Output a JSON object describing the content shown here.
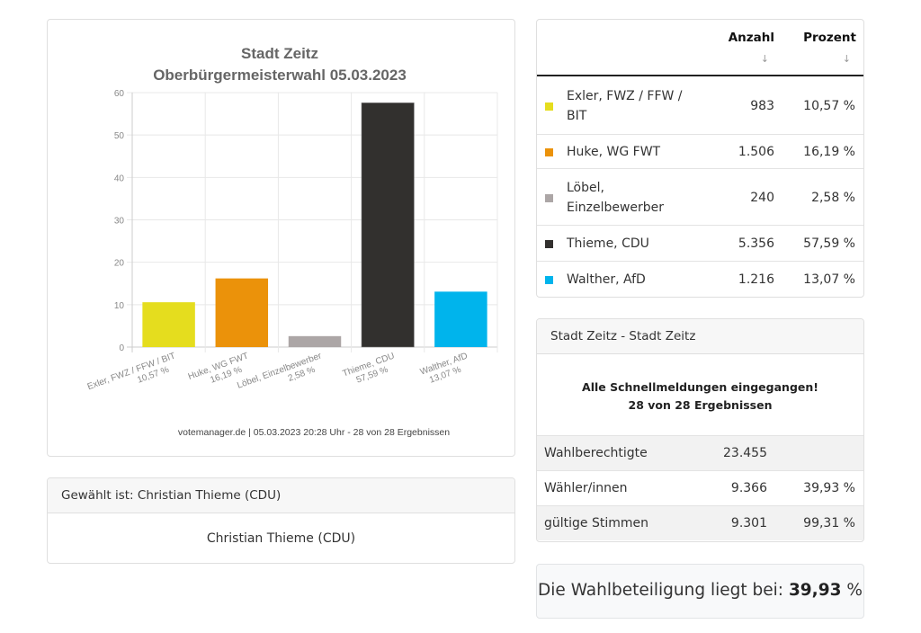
{
  "chart_data": {
    "type": "bar",
    "title": "Stadt Zeitz",
    "subtitle": "Oberbürgermeisterwahl 05.03.2023",
    "categories": [
      "Exler, FWZ / FFW / BIT",
      "Huke, WG FWT",
      "Löbel, Einzelbewerber",
      "Thieme, CDU",
      "Walther, AfD"
    ],
    "category_percent_labels": [
      "10,57 %",
      "16,19 %",
      "2,58 %",
      "57,59 %",
      "13,07 %"
    ],
    "values": [
      10.57,
      16.19,
      2.58,
      57.59,
      13.07
    ],
    "colors": [
      "#e5dd1e",
      "#eb920a",
      "#aca6a6",
      "#32302e",
      "#00b4ec"
    ],
    "ylim": [
      0,
      60
    ],
    "yticks": [
      0,
      10,
      20,
      30,
      40,
      50,
      60
    ],
    "xlabel": "",
    "ylabel": "",
    "grid": true,
    "footer": "votemanager.de | 05.03.2023 20:28 Uhr - 28 von 28 Ergebnissen"
  },
  "elected": {
    "header": "Gewählt ist: Christian Thieme (CDU)",
    "name": "Christian Thieme (CDU)"
  },
  "results_table": {
    "columns": {
      "count": "Anzahl",
      "percent": "Prozent",
      "sort_icon": "↓"
    },
    "rows": [
      {
        "name": "Exler, FWZ / FFW / BIT",
        "count": "983",
        "percent": "10,57 %",
        "color": "#e5dd1e"
      },
      {
        "name": "Huke, WG FWT",
        "count": "1.506",
        "percent": "16,19 %",
        "color": "#eb920a"
      },
      {
        "name": "Löbel, Einzelbewerber",
        "count": "240",
        "percent": "2,58 %",
        "color": "#aca6a6"
      },
      {
        "name": "Thieme, CDU",
        "count": "5.356",
        "percent": "57,59 %",
        "color": "#32302e"
      },
      {
        "name": "Walther, AfD",
        "count": "1.216",
        "percent": "13,07 %",
        "color": "#00b4ec"
      }
    ]
  },
  "summary": {
    "header": "Stadt Zeitz - Stadt Zeitz",
    "message_line1": "Alle Schnellmeldungen eingegangen!",
    "message_line2": "28 von 28 Ergebnissen",
    "rows": [
      {
        "label": "Wahlberechtigte",
        "count": "23.455",
        "percent": ""
      },
      {
        "label": "Wähler/innen",
        "count": "9.366",
        "percent": "39,93 %"
      },
      {
        "label": "gültige Stimmen",
        "count": "9.301",
        "percent": "99,31 %"
      }
    ]
  },
  "turnout": {
    "prefix": "Die Wahlbeteiligung liegt bei:",
    "value": "39,93",
    "unit": "%"
  }
}
